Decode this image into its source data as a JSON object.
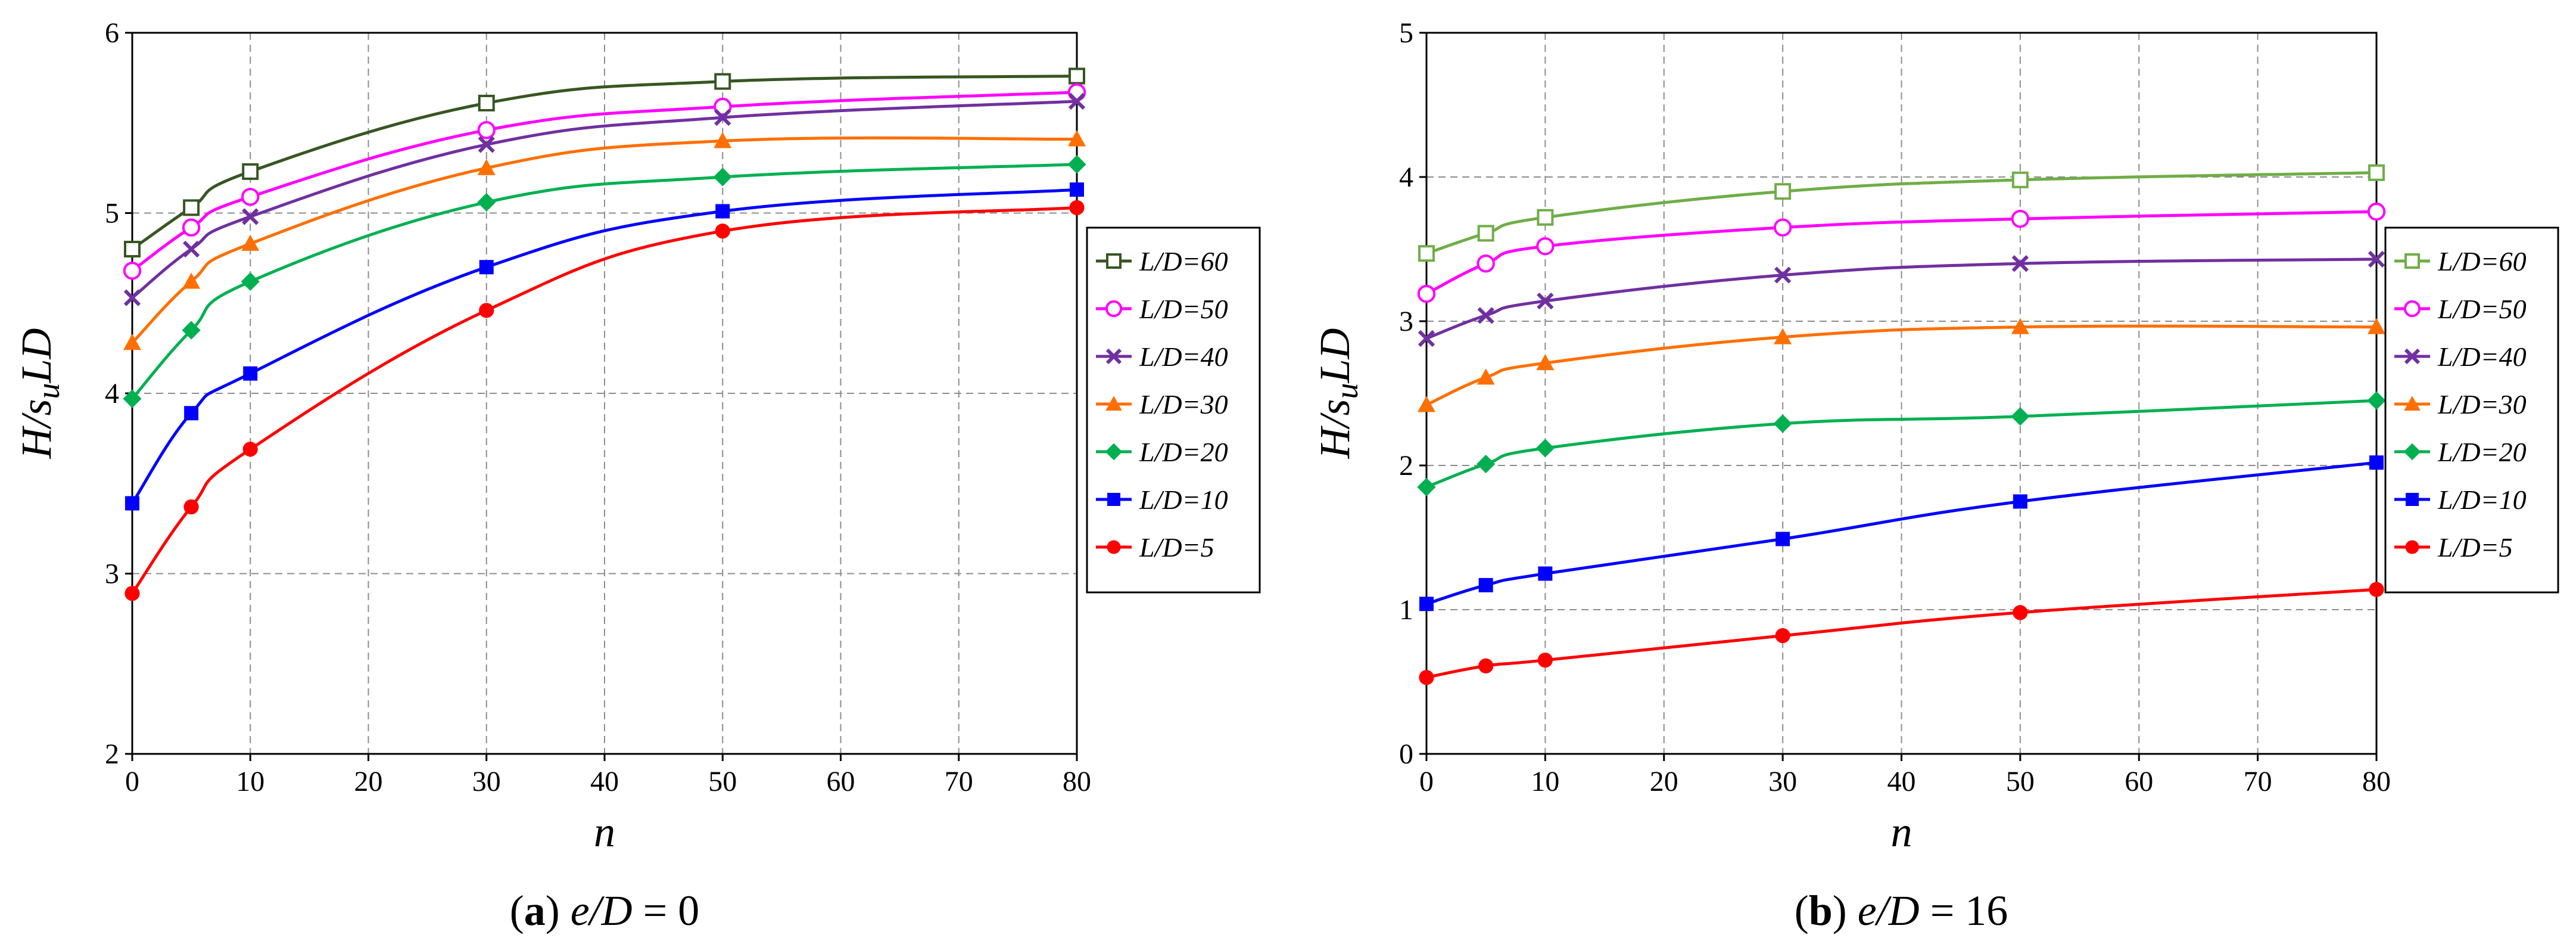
{
  "chart_data": [
    {
      "type": "line",
      "xlabel": "n",
      "ylabel_parts": {
        "main": "H/s",
        "sub": "u",
        "tail": "LD"
      },
      "caption": {
        "letter": "a",
        "expr": "e/D",
        "equals": " = 0"
      },
      "x": [
        0,
        5,
        10,
        30,
        50,
        80
      ],
      "xlim": [
        0,
        80
      ],
      "xticks": [
        0,
        10,
        20,
        30,
        40,
        50,
        60,
        70,
        80
      ],
      "ylim": [
        2,
        6
      ],
      "yticks": [
        2,
        3,
        4,
        5,
        6
      ],
      "grid": true,
      "legend_position": "right",
      "series": [
        {
          "name": "L/D=60",
          "marker": "square-open",
          "color": "#375623",
          "values": [
            4.8,
            5.03,
            5.23,
            5.61,
            5.73,
            5.76
          ]
        },
        {
          "name": "L/D=50",
          "marker": "circle-open",
          "color": "#ff00ff",
          "values": [
            4.68,
            4.92,
            5.09,
            5.46,
            5.59,
            5.67
          ]
        },
        {
          "name": "L/D=40",
          "marker": "x",
          "color": "#7030a0",
          "values": [
            4.53,
            4.8,
            4.98,
            5.38,
            5.53,
            5.62
          ]
        },
        {
          "name": "L/D=30",
          "marker": "triangle",
          "color": "#ff6f00",
          "values": [
            4.28,
            4.62,
            4.83,
            5.25,
            5.4,
            5.41
          ]
        },
        {
          "name": "L/D=20",
          "marker": "diamond",
          "color": "#00b050",
          "values": [
            3.97,
            4.35,
            4.62,
            5.06,
            5.2,
            5.27
          ]
        },
        {
          "name": "L/D=10",
          "marker": "square",
          "color": "#0000ff",
          "values": [
            3.39,
            3.89,
            4.11,
            4.7,
            5.01,
            5.13
          ]
        },
        {
          "name": "L/D=5",
          "marker": "circle",
          "color": "#ff0000",
          "values": [
            2.89,
            3.37,
            3.69,
            4.46,
            4.9,
            5.03
          ]
        }
      ]
    },
    {
      "type": "line",
      "xlabel": "n",
      "ylabel_parts": {
        "main": "H/s",
        "sub": "u",
        "tail": "LD"
      },
      "caption": {
        "letter": "b",
        "expr": "e/D",
        "equals": " = 16"
      },
      "x": [
        0,
        5,
        10,
        30,
        50,
        80
      ],
      "xlim": [
        0,
        80
      ],
      "xticks": [
        0,
        10,
        20,
        30,
        40,
        50,
        60,
        70,
        80
      ],
      "ylim": [
        0,
        5
      ],
      "yticks": [
        0,
        1,
        2,
        3,
        4,
        5
      ],
      "grid": true,
      "legend_position": "right",
      "series": [
        {
          "name": "L/D=60",
          "marker": "square-open",
          "color": "#70ad47",
          "values": [
            3.47,
            3.61,
            3.72,
            3.9,
            3.98,
            4.03
          ]
        },
        {
          "name": "L/D=50",
          "marker": "circle-open",
          "color": "#ff00ff",
          "values": [
            3.19,
            3.4,
            3.52,
            3.65,
            3.71,
            3.76
          ]
        },
        {
          "name": "L/D=40",
          "marker": "x",
          "color": "#7030a0",
          "values": [
            2.88,
            3.04,
            3.14,
            3.32,
            3.4,
            3.43
          ]
        },
        {
          "name": "L/D=30",
          "marker": "triangle",
          "color": "#ff6f00",
          "values": [
            2.42,
            2.61,
            2.71,
            2.89,
            2.96,
            2.96
          ]
        },
        {
          "name": "L/D=20",
          "marker": "diamond",
          "color": "#00b050",
          "values": [
            1.85,
            2.01,
            2.12,
            2.29,
            2.34,
            2.45
          ]
        },
        {
          "name": "L/D=10",
          "marker": "square",
          "color": "#0000ff",
          "values": [
            1.04,
            1.17,
            1.25,
            1.49,
            1.75,
            2.02
          ]
        },
        {
          "name": "L/D=5",
          "marker": "circle",
          "color": "#ff0000",
          "values": [
            0.53,
            0.61,
            0.65,
            0.82,
            0.98,
            1.14
          ]
        }
      ]
    }
  ]
}
